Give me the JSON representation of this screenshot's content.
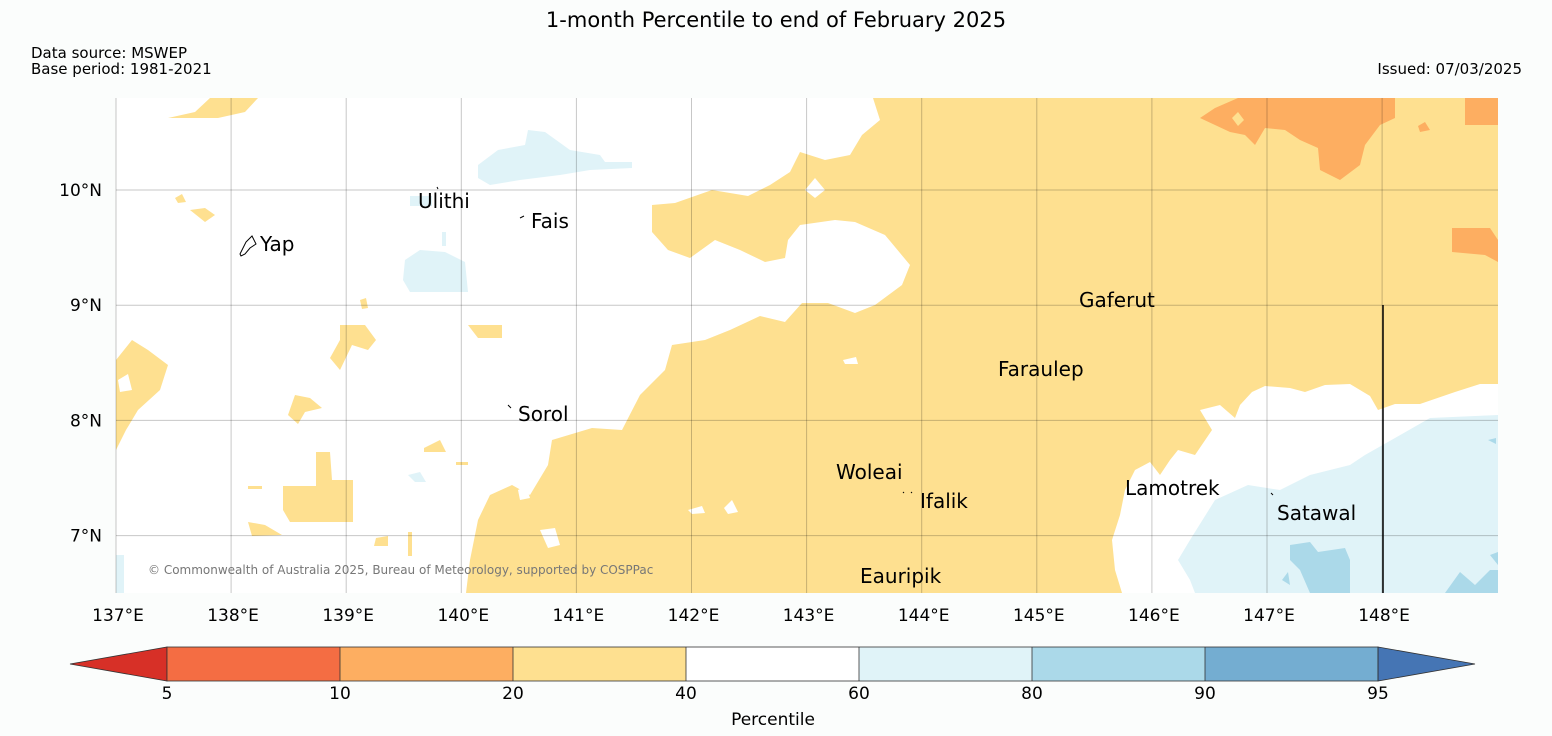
{
  "header": {
    "title": "1-month Percentile to end of February 2025",
    "data_source": "Data source: MSWEP",
    "base_period": "Base period: 1981-2021",
    "issued": "Issued: 07/03/2025"
  },
  "map": {
    "lon_ticks": [
      "137°E",
      "138°E",
      "139°E",
      "140°E",
      "141°E",
      "142°E",
      "143°E",
      "144°E",
      "145°E",
      "146°E",
      "147°E",
      "148°E"
    ],
    "lat_ticks": [
      "10°N",
      "9°N",
      "8°N",
      "7°N"
    ],
    "places": {
      "ulithi": "Ulithi",
      "fais": "Fais",
      "yap": "Yap",
      "gaferut": "Gaferut",
      "faraulep": "Faraulep",
      "sorol": "Sorol",
      "woleai": "Woleai",
      "ifalik": "Ifalik",
      "lamotrek": "Lamotrek",
      "satawal": "Satawal",
      "eauripik": "Eauripik"
    },
    "credit": "© Commonwealth of Australia 2025, Bureau of Meteorology, supported by COSPPac",
    "colors": {
      "p5_10": "#f46d43",
      "p10_20": "#fdae61",
      "p20_40": "#fee090",
      "p40_60": "#ffffff",
      "p60_80": "#e0f3f8",
      "p80_90": "#abd9e9",
      "p90_95": "#74add1",
      "below5": "#d73027",
      "above95": "#4575b4"
    }
  },
  "colorbar": {
    "ticks": [
      "5",
      "10",
      "20",
      "40",
      "60",
      "80",
      "90",
      "95"
    ],
    "label": "Percentile"
  }
}
